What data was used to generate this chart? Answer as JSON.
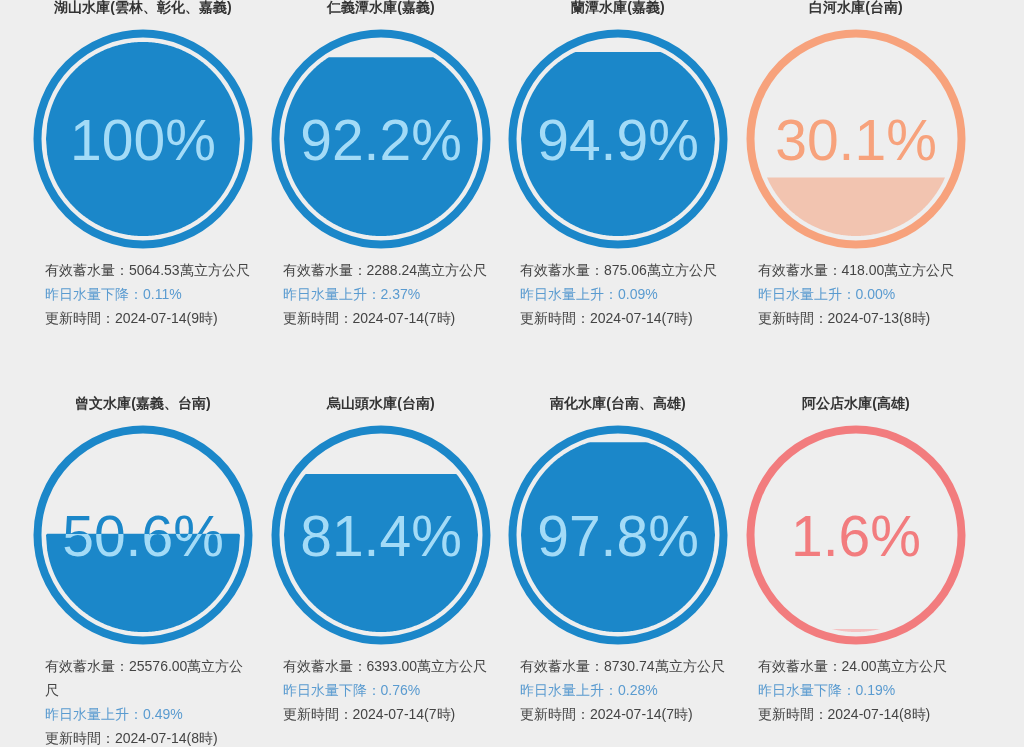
{
  "chart_data": [
    {
      "type": "other",
      "title": "湖山水庫(雲林、彰化、嘉義)",
      "values": [
        100
      ],
      "value_labels": [
        "100%"
      ],
      "color": "#1b87c9",
      "colors": [
        "#1b87c9"
      ],
      "annotations": [
        "有效蓄水量：5064.53萬立方公尺",
        "昨日水量下降：0.11%",
        "更新時間：2024-07-14(9時)"
      ]
    },
    {
      "type": "other",
      "title": "仁義潭水庫(嘉義)",
      "values": [
        92.2
      ],
      "value_labels": [
        "92.2%"
      ],
      "color": "#1b87c9",
      "colors": [
        "#1b87c9"
      ],
      "annotations": [
        "有效蓄水量：2288.24萬立方公尺",
        "昨日水量上升：2.37%",
        "更新時間：2024-07-14(7時)"
      ]
    },
    {
      "type": "other",
      "title": "蘭潭水庫(嘉義)",
      "values": [
        94.9
      ],
      "value_labels": [
        "94.9%"
      ],
      "color": "#1b87c9",
      "colors": [
        "#1b87c9"
      ],
      "annotations": [
        "有效蓄水量：875.06萬立方公尺",
        "昨日水量上升：0.09%",
        "更新時間：2024-07-14(7時)"
      ]
    },
    {
      "type": "other",
      "title": "白河水庫(台南)",
      "values": [
        30.1
      ],
      "value_labels": [
        "30.1%"
      ],
      "color": "#f7a27c",
      "colors": [
        "#f2c4b0"
      ],
      "annotations": [
        "有效蓄水量：418.00萬立方公尺",
        "昨日水量上升：0.00%",
        "更新時間：2024-07-13(8時)"
      ]
    },
    {
      "type": "other",
      "title": "曾文水庫(嘉義、台南)",
      "values": [
        50.6
      ],
      "value_labels": [
        "50.6%"
      ],
      "color": "#1b87c9",
      "colors": [
        "#1b87c9"
      ],
      "annotations": [
        "有效蓄水量：25576.00萬立方公尺",
        "昨日水量上升：0.49%",
        "更新時間：2024-07-14(8時)"
      ]
    },
    {
      "type": "other",
      "title": "烏山頭水庫(台南)",
      "values": [
        81.4
      ],
      "value_labels": [
        "81.4%"
      ],
      "color": "#1b87c9",
      "colors": [
        "#1b87c9"
      ],
      "annotations": [
        "有效蓄水量：6393.00萬立方公尺",
        "昨日水量下降：0.76%",
        "更新時間：2024-07-14(7時)"
      ]
    },
    {
      "type": "other",
      "title": "南化水庫(台南、高雄)",
      "values": [
        97.8
      ],
      "value_labels": [
        "97.8%"
      ],
      "color": "#1b87c9",
      "colors": [
        "#1b87c9"
      ],
      "annotations": [
        "有效蓄水量：8730.74萬立方公尺",
        "昨日水量上升：0.28%",
        "更新時間：2024-07-14(7時)"
      ]
    },
    {
      "type": "other",
      "title": "阿公店水庫(高雄)",
      "values": [
        1.6
      ],
      "value_labels": [
        "1.6%"
      ],
      "color": "#f27c7e",
      "colors": [
        "#f5c0c0"
      ],
      "annotations": [
        "有效蓄水量：24.00萬立方公尺",
        "昨日水量下降：0.19%",
        "更新時間：2024-07-14(8時)"
      ]
    }
  ]
}
